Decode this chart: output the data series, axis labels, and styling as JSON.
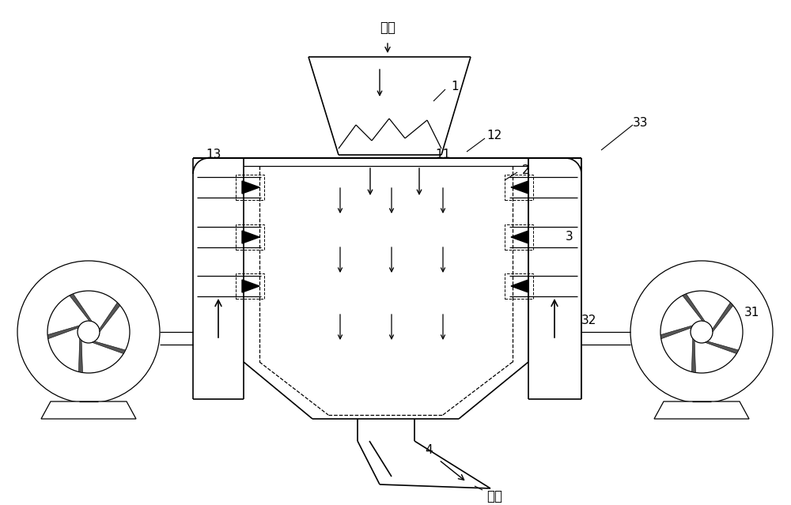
{
  "bg_color": "#ffffff",
  "line_color": "#000000",
  "fig_width": 10.0,
  "fig_height": 6.39,
  "labels": {
    "jin_liao": "进料",
    "chu_liao": "出料",
    "num_1": "1",
    "num_2": "2",
    "num_3": "3",
    "num_4": "4",
    "num_11": "11",
    "num_12": "12",
    "num_13": "13",
    "num_31": "31",
    "num_32": "32",
    "num_33": "33"
  },
  "font_size": 12
}
